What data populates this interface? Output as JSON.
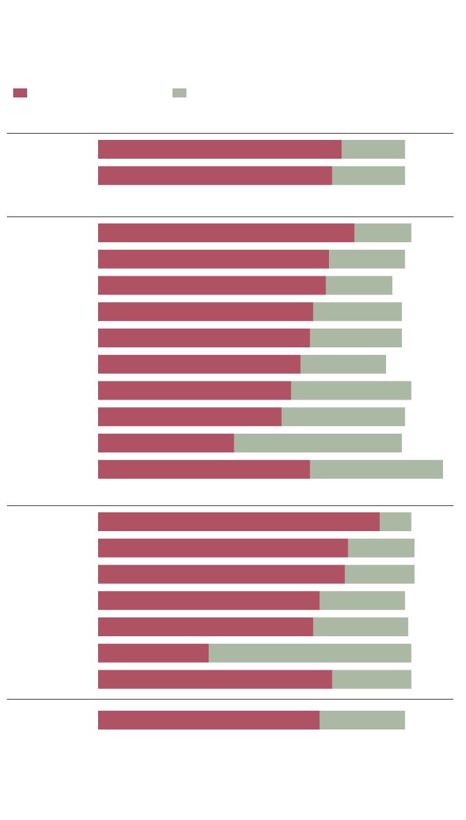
{
  "chart_data": {
    "type": "bar",
    "stacked": true,
    "orientation": "horizontal",
    "title": "",
    "xlabel": "",
    "ylabel": "",
    "grid": false,
    "legend_position": "top-left",
    "colors": {
      "series_1": "#ae5264",
      "series_2": "#aab8a4",
      "divider": "#333333"
    },
    "series": [
      {
        "name": "",
        "color": "#ae5264"
      },
      {
        "name": "",
        "color": "#aab8a4"
      }
    ],
    "groups": [
      {
        "label": "",
        "bars": [
          {
            "a": 77,
            "b": 20
          },
          {
            "a": 74,
            "b": 23
          }
        ]
      },
      {
        "label": "",
        "bars": [
          {
            "a": 81,
            "b": 18
          },
          {
            "a": 73,
            "b": 24
          },
          {
            "a": 72,
            "b": 21
          },
          {
            "a": 68,
            "b": 28
          },
          {
            "a": 67,
            "b": 29
          },
          {
            "a": 64,
            "b": 27
          },
          {
            "a": 61,
            "b": 38
          },
          {
            "a": 58,
            "b": 39
          },
          {
            "a": 43,
            "b": 53
          },
          {
            "a": 67,
            "b": 42
          }
        ]
      },
      {
        "label": "",
        "bars": [
          {
            "a": 89,
            "b": 10
          },
          {
            "a": 79,
            "b": 21
          },
          {
            "a": 78,
            "b": 22
          },
          {
            "a": 70,
            "b": 27
          },
          {
            "a": 68,
            "b": 30
          },
          {
            "a": 35,
            "b": 64
          },
          {
            "a": 74,
            "b": 25
          }
        ]
      },
      {
        "label": "",
        "bars": [
          {
            "a": 70,
            "b": 27
          }
        ]
      }
    ]
  }
}
